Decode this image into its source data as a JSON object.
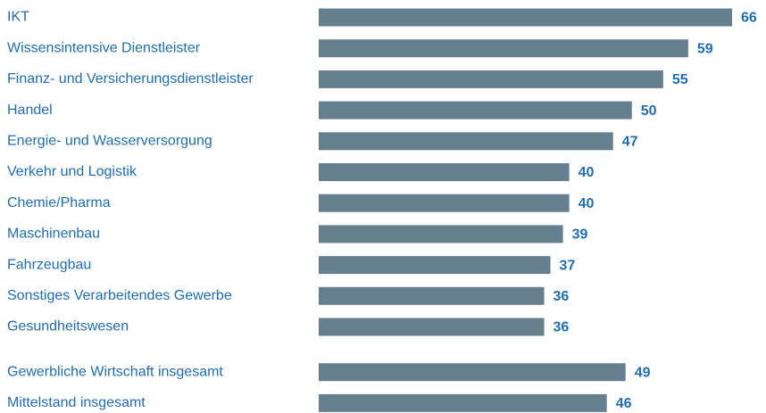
{
  "chart_data": {
    "type": "bar",
    "orientation": "horizontal",
    "categories": [
      "IKT",
      "Wissensintensive Dienstleister",
      "Finanz- und Versicherungsdienstleister",
      "Handel",
      "Energie- und Wasserversorgung",
      "Verkehr und Logistik",
      "Chemie/Pharma",
      "Maschinenbau",
      "Fahrzeugbau",
      "Sonstiges Verarbeitendes Gewerbe",
      "Gesundheitswesen",
      "Gewerbliche Wirtschaft insgesamt",
      "Mittelstand insgesamt"
    ],
    "values": [
      66,
      59,
      55,
      50,
      47,
      40,
      40,
      39,
      37,
      36,
      36,
      49,
      46
    ],
    "color": "#667f8f"
  }
}
